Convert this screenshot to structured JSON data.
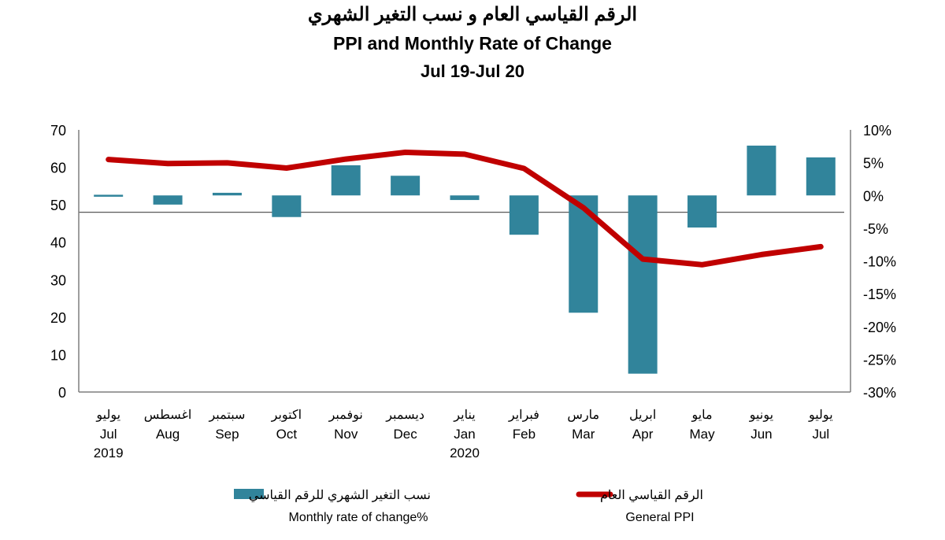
{
  "title_ar": "الرقم القياسي العام و نسب التغير الشهري",
  "title_en": "PPI and Monthly Rate of Change",
  "subtitle": "Jul 19-Jul 20",
  "colors": {
    "bar": "#31849b",
    "line": "#c00000",
    "axis": "#7f7f7f",
    "reference_line": "#595959"
  },
  "chart_data": {
    "type": "bar+line",
    "categories_ar": [
      "يوليو",
      "اغسطس",
      "سبتمبر",
      "اكتوبر",
      "نوفمبر",
      "ديسمبر",
      "يناير",
      "فبراير",
      "مارس",
      "ابريل",
      "مايو",
      "يونيو",
      "يوليو"
    ],
    "categories_en": [
      "Jul",
      "Aug",
      "Sep",
      "Oct",
      "Nov",
      "Dec",
      "Jan",
      "Feb",
      "Mar",
      "Apr",
      "May",
      "Jun",
      "Jul"
    ],
    "year_labels": [
      "2019",
      "",
      "",
      "",
      "",
      "",
      "2020",
      "",
      "",
      "",
      "",
      "",
      ""
    ],
    "left_axis": {
      "min": 0,
      "max": 70,
      "ticks": [
        "0",
        "10",
        "20",
        "30",
        "40",
        "50",
        "60",
        "70"
      ]
    },
    "right_axis": {
      "min": -30,
      "max": 10,
      "ticks": [
        "-30%",
        "-25%",
        "-20%",
        "-15%",
        "-10%",
        "-5%",
        "0%",
        "5%",
        "10%"
      ]
    },
    "reference_line_value": 48,
    "series": [
      {
        "name_ar": "نسب التغير الشهري للرقم القياسي",
        "name_en": "Monthly rate of change%",
        "type": "bar",
        "axis": "right",
        "values": [
          0.1,
          -1.4,
          0.4,
          -3.3,
          4.6,
          3.0,
          -0.7,
          -6.0,
          -17.9,
          -27.2,
          -4.9,
          7.6,
          5.8
        ]
      },
      {
        "name_ar": "الرقم القياسي العام",
        "name_en": "General PPI",
        "type": "line",
        "axis": "left",
        "values": [
          62.1,
          61.0,
          61.2,
          59.8,
          62.2,
          64.0,
          63.5,
          59.7,
          49.2,
          35.5,
          34.0,
          36.7,
          38.8
        ]
      }
    ]
  }
}
